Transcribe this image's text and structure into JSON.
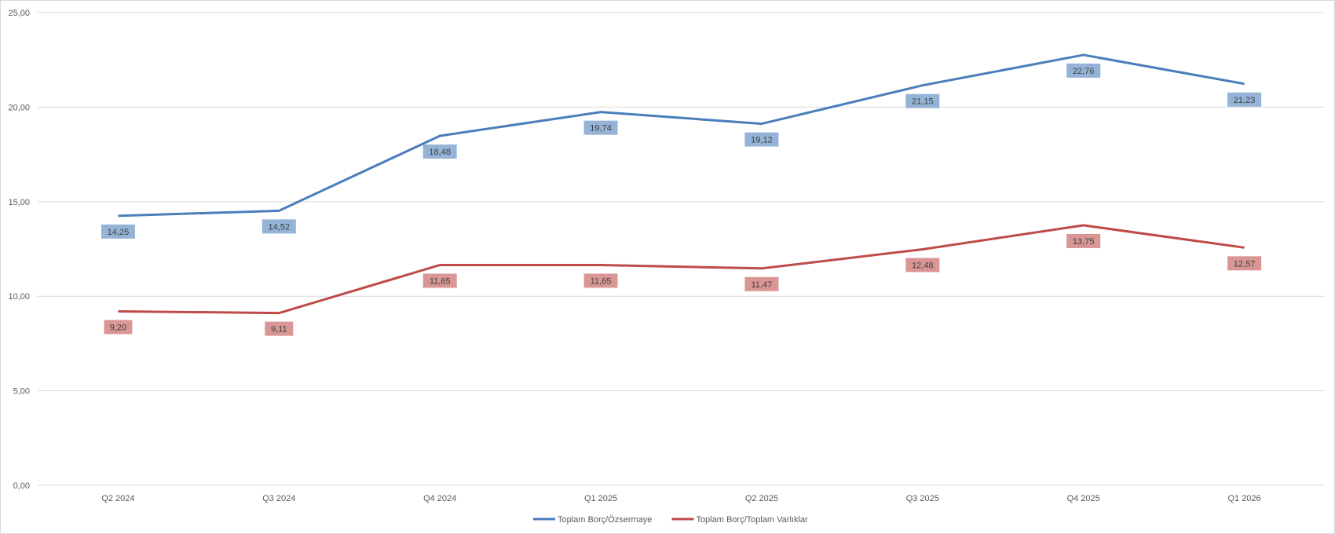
{
  "chart_data": {
    "type": "line",
    "categories": [
      "Q2 2024",
      "Q3 2024",
      "Q4 2024",
      "Q1 2025",
      "Q2 2025",
      "Q3 2025",
      "Q4 2025",
      "Q1 2026"
    ],
    "series": [
      {
        "name": "Toplam Borç/Özsermaye",
        "color": "#4a7ebb",
        "label_bg": "#95b3d7",
        "values": [
          14.25,
          14.52,
          18.48,
          19.74,
          19.12,
          21.15,
          22.76,
          21.23
        ],
        "labels": [
          "14,25",
          "14,52",
          "18,48",
          "19,74",
          "19,12",
          "21,15",
          "22,76",
          "21,23"
        ]
      },
      {
        "name": "Toplam Borç/Toplam Varlıklar",
        "color": "#be4b48",
        "label_bg": "#d99694",
        "values": [
          9.2,
          9.11,
          11.65,
          11.65,
          11.47,
          12.48,
          13.75,
          12.57
        ],
        "labels": [
          "9,20",
          "9,11",
          "11,65",
          "11,65",
          "11,47",
          "12,48",
          "13,75",
          "12,57"
        ]
      }
    ],
    "yticks": [
      0,
      5,
      10,
      15,
      20,
      25
    ],
    "ytick_labels": [
      "0,00",
      "5,00",
      "10,00",
      "15,00",
      "20,00",
      "25,00"
    ],
    "ylim": [
      0,
      25
    ],
    "grid": true,
    "legend": "bottom"
  }
}
